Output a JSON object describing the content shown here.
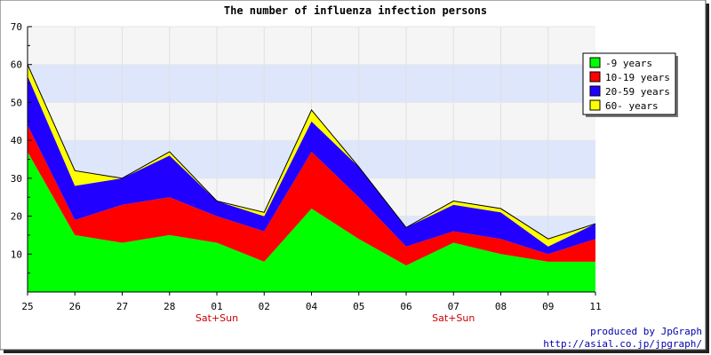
{
  "chart_data": {
    "type": "area",
    "stacked": true,
    "title": "The number of influenza infection persons",
    "xlabel": "",
    "ylabel": "",
    "categories": [
      "25",
      "26",
      "27",
      "28",
      "01",
      "02",
      "04",
      "05",
      "06",
      "07",
      "08",
      "09",
      "11"
    ],
    "category_notes": [
      {
        "index": 4,
        "text": "Sat+Sun"
      },
      {
        "index": 9,
        "text": "Sat+Sun"
      }
    ],
    "ylim": [
      0,
      70
    ],
    "yticks": [
      10,
      20,
      30,
      40,
      50,
      60,
      70
    ],
    "grid": true,
    "band_colors": [
      "#f5f5f5",
      "#dde6fb"
    ],
    "legend_position": "right",
    "series": [
      {
        "name": "-9 years",
        "color": "#00ff00",
        "values": [
          37,
          15,
          13,
          15,
          13,
          8,
          22,
          14,
          7,
          13,
          10,
          8,
          8
        ]
      },
      {
        "name": "10-19 years",
        "color": "#ff0000",
        "values": [
          7,
          4,
          10,
          10,
          7,
          8,
          15,
          11,
          5,
          3,
          4,
          2,
          6
        ]
      },
      {
        "name": "20-59 years",
        "color": "#2200ff",
        "values": [
          13,
          9,
          7,
          11,
          4,
          4,
          8,
          8,
          5,
          7,
          7,
          2,
          4
        ]
      },
      {
        "name": "60- years",
        "color": "#ffff00",
        "values": [
          3,
          4,
          0,
          1,
          0,
          1,
          3,
          0,
          0,
          1,
          1,
          2,
          0
        ]
      }
    ]
  },
  "credits": {
    "line1": "produced by JpGraph",
    "line2": "http://asial.co.jp/jpgraph/"
  }
}
